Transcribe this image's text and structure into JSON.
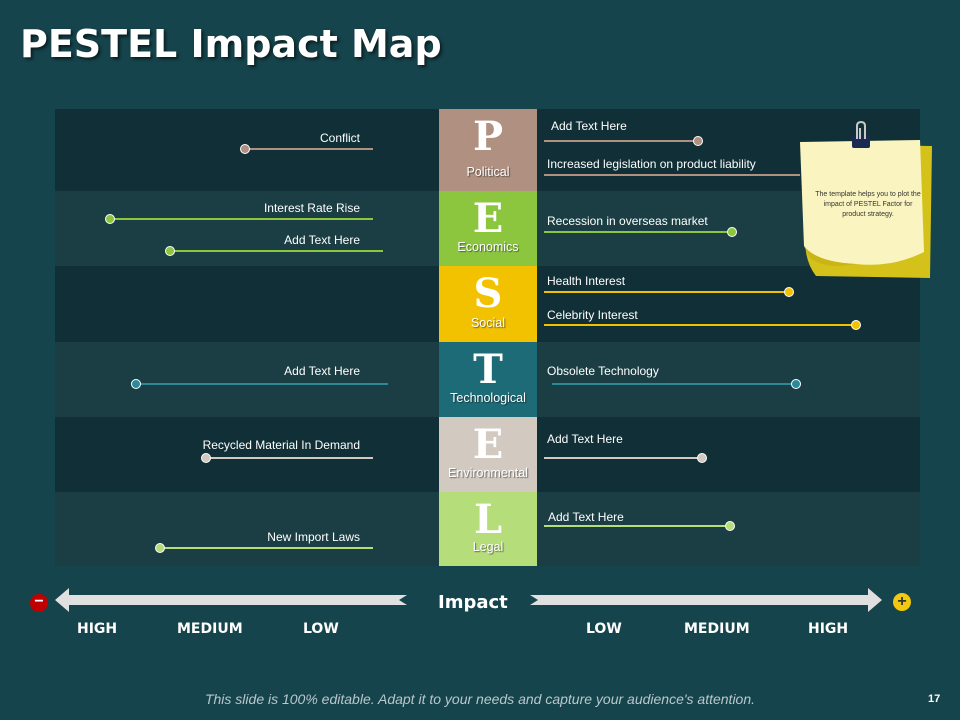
{
  "title": "PESTEL Impact Map",
  "pestel": [
    {
      "letter": "P",
      "category": "Political",
      "color": "#b09080"
    },
    {
      "letter": "E",
      "category": "Economics",
      "color": "#8cc63f"
    },
    {
      "letter": "S",
      "category": "Social",
      "color": "#f2c200"
    },
    {
      "letter": "T",
      "category": "Technological",
      "color": "#1e6b78"
    },
    {
      "letter": "E",
      "category": "Environmental",
      "color": "#d2c9c0"
    },
    {
      "letter": "L",
      "category": "Legal",
      "color": "#b5dd7a"
    }
  ],
  "factors": {
    "political": {
      "negative": [
        {
          "label": "Conflict"
        }
      ],
      "positive": [
        {
          "label": "Add Text Here"
        },
        {
          "label": "Increased legislation on product liability"
        }
      ]
    },
    "economics": {
      "negative": [
        {
          "label": "Interest Rate Rise"
        },
        {
          "label": "Add Text Here"
        }
      ],
      "positive": [
        {
          "label": "Recession in overseas market"
        }
      ]
    },
    "social": {
      "positive": [
        {
          "label": "Health Interest"
        },
        {
          "label": "Celebrity Interest"
        }
      ]
    },
    "technological": {
      "negative": [
        {
          "label": "Add Text Here"
        }
      ],
      "positive": [
        {
          "label": "Obsolete Technology"
        }
      ]
    },
    "environmental": {
      "negative": [
        {
          "label": "Recycled Material In Demand"
        }
      ],
      "positive": [
        {
          "label": "Add Text Here"
        }
      ]
    },
    "legal": {
      "negative": [
        {
          "label": "New Import Laws"
        }
      ],
      "positive": [
        {
          "label": "Add Text Here"
        }
      ]
    }
  },
  "axis": {
    "label": "Impact",
    "negative_scale": [
      "HIGH",
      "MEDIUM",
      "LOW"
    ],
    "positive_scale": [
      "LOW",
      "MEDIUM",
      "HIGH"
    ],
    "minus_symbol": "−",
    "plus_symbol": "+"
  },
  "note": {
    "text": "The template helps you to plot the impact of PESTEL Factor for product strategy."
  },
  "footer": "This slide is 100% editable. Adapt it to your needs and capture your audience's attention.",
  "page_number": "17"
}
